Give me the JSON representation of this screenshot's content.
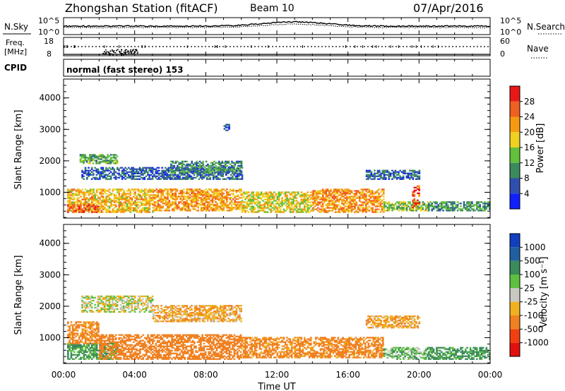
{
  "header": {
    "station": "Zhongshan Station (fitACF)",
    "beam": "Beam 10",
    "date": "07/Apr/2016"
  },
  "noise_panel": {
    "left_label": "N.Sky",
    "right_label": "N.Search",
    "y_ticks_left": [
      "10^5",
      "10^0"
    ],
    "y_ticks_right": [
      "10^5",
      "10^0"
    ]
  },
  "freq_panel": {
    "left_label_1": "Freq.",
    "left_label_2": "[MHz]",
    "right_label": "Nave",
    "y_ticks_left": [
      "18",
      "8"
    ],
    "y_ticks_right": [
      "60",
      "0"
    ]
  },
  "cpid_panel": {
    "label": "CPID",
    "text": "normal (fast stereo) 153"
  },
  "x_axis": {
    "label": "Time UT",
    "ticks": [
      "00:00",
      "04:00",
      "08:00",
      "12:00",
      "16:00",
      "20:00",
      "00:00"
    ]
  },
  "power_panel": {
    "ylabel": "Slant Range [km]",
    "y_ticks": [
      "1000",
      "2000",
      "3000",
      "4000"
    ],
    "colorbar_label": "Power [dB]",
    "colorbar_ticks": [
      "4",
      "8",
      "12",
      "16",
      "20",
      "24",
      "28"
    ],
    "colorbar_colors": [
      "#1020ff",
      "#2e4fb0",
      "#3c8a5c",
      "#62c03c",
      "#f0d020",
      "#f59a10",
      "#f06020",
      "#e81818"
    ]
  },
  "velocity_panel": {
    "ylabel": "Slant Range [km]",
    "y_ticks": [
      "1000",
      "2000",
      "3000",
      "4000"
    ],
    "colorbar_label": "Velocity [m s⁻¹]",
    "colorbar_ticks": [
      "1000",
      "500",
      "100",
      "25",
      "-25",
      "-100",
      "-500",
      "-1000"
    ],
    "colorbar_colors": [
      "#1040c0",
      "#2060a0",
      "#3a8a5a",
      "#5ec040",
      "#c8c8c0",
      "#f0b020",
      "#f08020",
      "#f04010",
      "#e01010"
    ]
  },
  "chart_data": [
    {
      "type": "heatmap",
      "title": "Power",
      "xlabel": "Time UT",
      "ylabel": "Slant Range [km]",
      "x_range_hours": [
        0,
        24
      ],
      "ylim": [
        180,
        4600
      ],
      "value_unit": "dB",
      "regions": [
        {
          "t0": 0.2,
          "t1": 5.0,
          "r0": 350,
          "r1": 1100,
          "value": 20
        },
        {
          "t0": 0.2,
          "t1": 2.0,
          "r0": 350,
          "r1": 600,
          "value": 26
        },
        {
          "t0": 5.0,
          "t1": 10.0,
          "r0": 400,
          "r1": 1100,
          "value": 22
        },
        {
          "t0": 10.0,
          "t1": 14.0,
          "r0": 350,
          "r1": 1000,
          "value": 18
        },
        {
          "t0": 14.0,
          "t1": 18.0,
          "r0": 350,
          "r1": 1100,
          "value": 23
        },
        {
          "t0": 18.0,
          "t1": 20.5,
          "r0": 400,
          "r1": 700,
          "value": 14
        },
        {
          "t0": 19.6,
          "t1": 20.0,
          "r0": 500,
          "r1": 1200,
          "value": 27
        },
        {
          "t0": 20.5,
          "t1": 24.0,
          "r0": 400,
          "r1": 700,
          "value": 11
        },
        {
          "t0": 1.0,
          "t1": 10.0,
          "r0": 1400,
          "r1": 1800,
          "value": 7
        },
        {
          "t0": 0.9,
          "t1": 3.0,
          "r0": 1900,
          "r1": 2200,
          "value": 12
        },
        {
          "t0": 6.0,
          "t1": 10.0,
          "r0": 1600,
          "r1": 2000,
          "value": 10
        },
        {
          "t0": 17.0,
          "t1": 20.0,
          "r0": 1400,
          "r1": 1700,
          "value": 7
        },
        {
          "t0": 9.0,
          "t1": 9.3,
          "r0": 2950,
          "r1": 3150,
          "value": 6
        }
      ]
    },
    {
      "type": "heatmap",
      "title": "Velocity",
      "xlabel": "Time UT",
      "ylabel": "Slant Range [km]",
      "x_range_hours": [
        0,
        24
      ],
      "ylim": [
        180,
        4600
      ],
      "value_unit": "m s-1",
      "regions": [
        {
          "t0": 0.2,
          "t1": 3.0,
          "r0": 300,
          "r1": 800,
          "value": 120
        },
        {
          "t0": 0.2,
          "t1": 2.0,
          "r0": 800,
          "r1": 1500,
          "value": -150
        },
        {
          "t0": 2.0,
          "t1": 10.0,
          "r0": 300,
          "r1": 1100,
          "value": -200
        },
        {
          "t0": 10.0,
          "t1": 18.0,
          "r0": 350,
          "r1": 1000,
          "value": -150
        },
        {
          "t0": 18.0,
          "t1": 20.5,
          "r0": 300,
          "r1": 700,
          "value": 60
        },
        {
          "t0": 20.5,
          "t1": 24.0,
          "r0": 300,
          "r1": 700,
          "value": 150
        },
        {
          "t0": 1.0,
          "t1": 5.0,
          "r0": 1800,
          "r1": 2300,
          "value": 0
        },
        {
          "t0": 5.0,
          "t1": 10.0,
          "r0": 1500,
          "r1": 2000,
          "value": -80
        },
        {
          "t0": 17.0,
          "t1": 20.0,
          "r0": 1300,
          "r1": 1700,
          "value": -90
        }
      ]
    }
  ]
}
